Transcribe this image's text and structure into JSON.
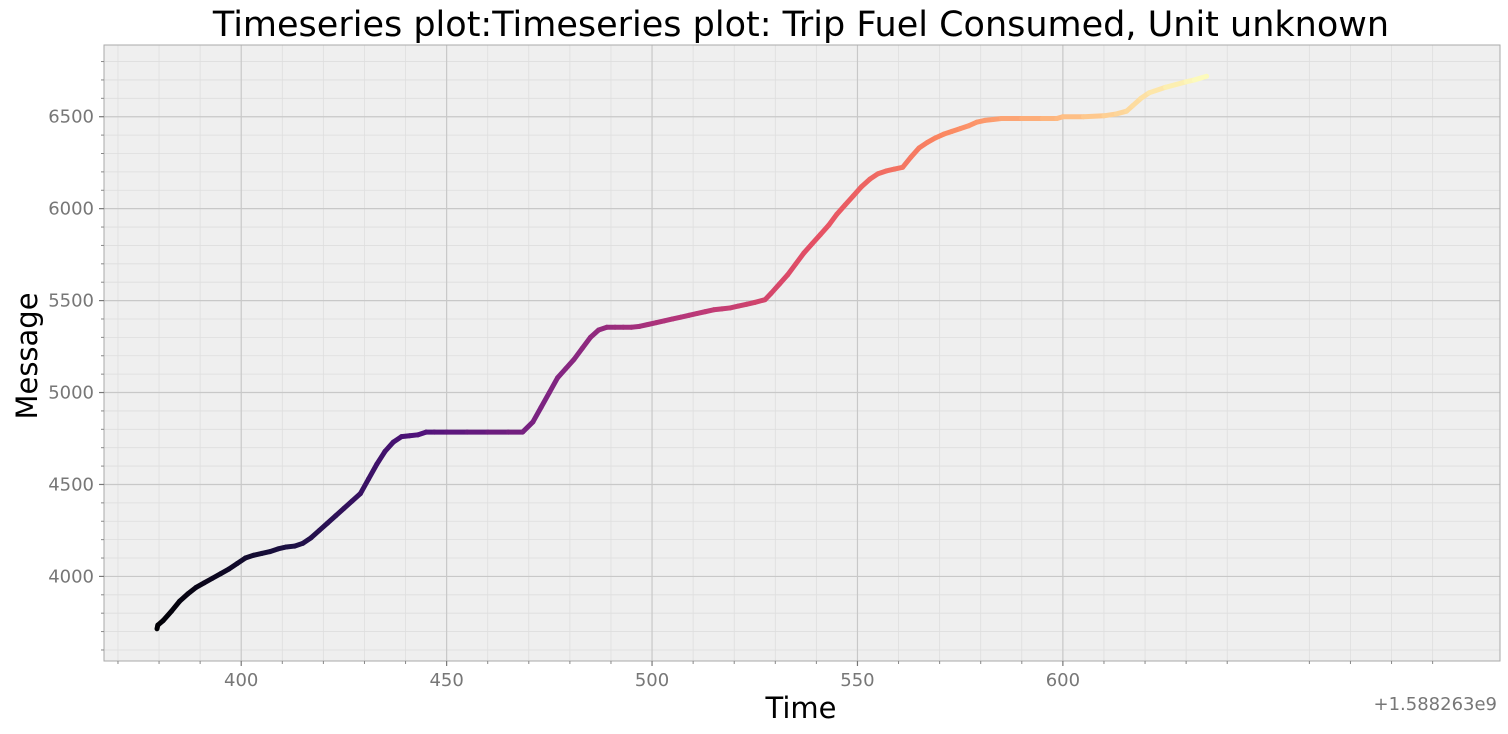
{
  "chart_data": {
    "type": "line",
    "title": "Timeseries plot:Timeseries plot: Trip Fuel Consumed, Unit unknown",
    "xlabel": "Time",
    "ylabel": "Message",
    "x_offset_label": "+1.588263e9",
    "xlim": [
      366.6,
      706.4
    ],
    "ylim": [
      3540,
      6890
    ],
    "x_ticks": [
      400,
      450,
      500,
      550,
      600
    ],
    "x_tick_labels": [
      "400",
      "450",
      "500",
      "550",
      "600"
    ],
    "y_ticks": [
      4000,
      4500,
      5000,
      5500,
      6000,
      6500
    ],
    "y_tick_labels": [
      "4000",
      "4500",
      "5000",
      "5500",
      "6000",
      "6500"
    ],
    "grid": true,
    "colormap": "magma",
    "series": [
      {
        "x": [
          379.5,
          379.7,
          381,
          383,
          385,
          387,
          389,
          391,
          393,
          395,
          397,
          399,
          401,
          403,
          405,
          407,
          409,
          411,
          413,
          415,
          417,
          419,
          421,
          423,
          425,
          427,
          429,
          431,
          433,
          435,
          437,
          439,
          441,
          443,
          445,
          447,
          450,
          455,
          460,
          465,
          468.5,
          471,
          473,
          475,
          477,
          479,
          481,
          483,
          485,
          487,
          489,
          491,
          493,
          495,
          497,
          499,
          501,
          503,
          505,
          507,
          509,
          511,
          513,
          515,
          517,
          519,
          521,
          523,
          525,
          527.5,
          529,
          531,
          533,
          535,
          537,
          539,
          541,
          543,
          545,
          547,
          549,
          551,
          553,
          555,
          557,
          559,
          561,
          563,
          565,
          567,
          569,
          571,
          573,
          575,
          577,
          579,
          581,
          583,
          585,
          590,
          595,
          598.5,
          600,
          605,
          610,
          613,
          615.5,
          617,
          619,
          621,
          625,
          630,
          632,
          635
        ],
        "y": [
          3715,
          3735,
          3760,
          3810,
          3865,
          3905,
          3940,
          3965,
          3990,
          4015,
          4040,
          4070,
          4100,
          4115,
          4125,
          4135,
          4150,
          4160,
          4165,
          4180,
          4210,
          4250,
          4290,
          4330,
          4370,
          4410,
          4450,
          4530,
          4610,
          4680,
          4730,
          4760,
          4765,
          4770,
          4785,
          4785,
          4785,
          4785,
          4785,
          4785,
          4785,
          4840,
          4920,
          5000,
          5080,
          5130,
          5180,
          5240,
          5300,
          5340,
          5355,
          5355,
          5355,
          5355,
          5360,
          5370,
          5380,
          5390,
          5400,
          5410,
          5420,
          5430,
          5440,
          5450,
          5455,
          5460,
          5470,
          5480,
          5490,
          5505,
          5540,
          5590,
          5640,
          5700,
          5760,
          5810,
          5860,
          5910,
          5970,
          6020,
          6070,
          6120,
          6160,
          6190,
          6205,
          6215,
          6225,
          6280,
          6330,
          6360,
          6385,
          6405,
          6420,
          6435,
          6450,
          6470,
          6480,
          6485,
          6490,
          6490,
          6490,
          6490,
          6500,
          6500,
          6505,
          6515,
          6530,
          6560,
          6600,
          6630,
          6660,
          6690,
          6700,
          6720
        ]
      }
    ]
  }
}
